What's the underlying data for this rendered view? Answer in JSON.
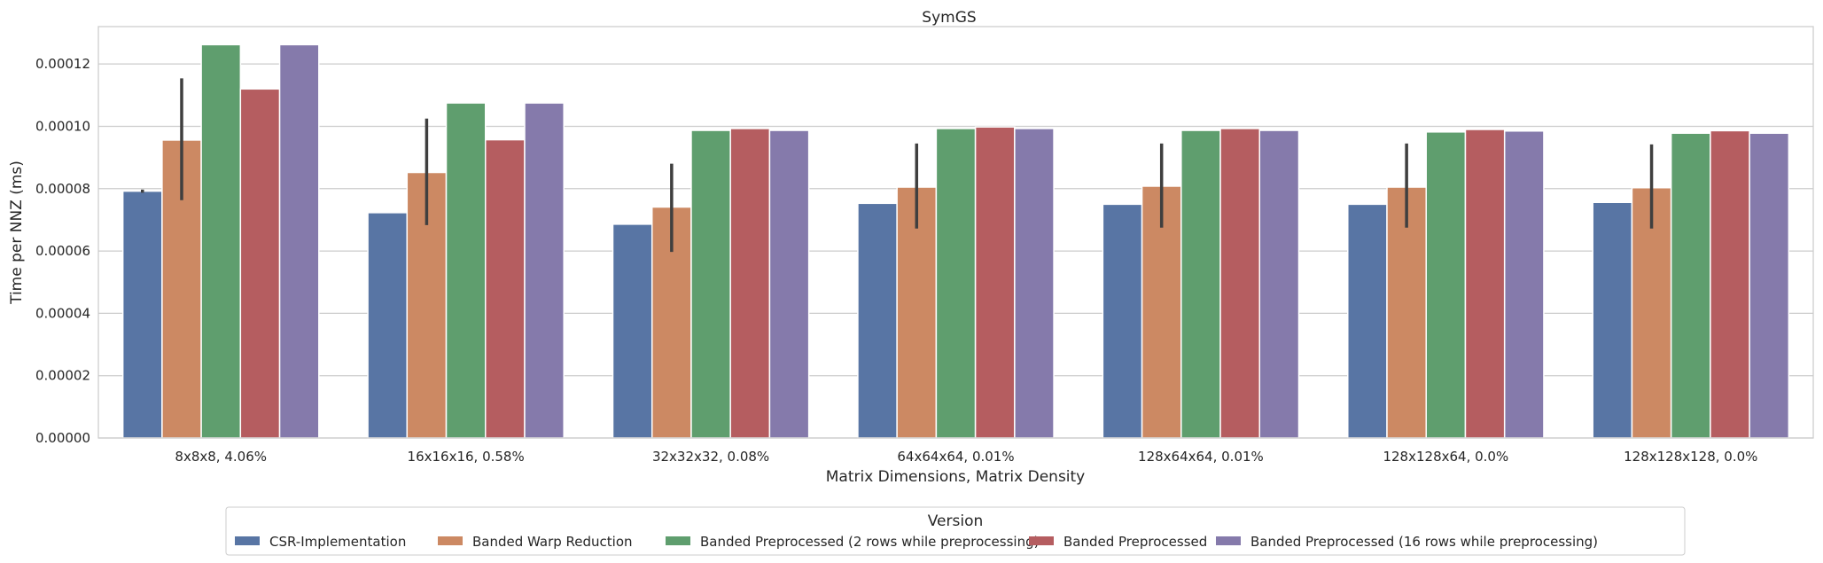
{
  "chart_data": {
    "type": "bar",
    "title": "SymGS",
    "xlabel": "Matrix Dimensions, Matrix Density",
    "ylabel": "Time per NNZ (ms)",
    "ylim": [
      0,
      0.000132
    ],
    "yticks": [
      0,
      2e-05,
      4e-05,
      6e-05,
      8e-05,
      0.0001,
      0.00012
    ],
    "ytick_labels": [
      "0.00000",
      "0.00002",
      "0.00004",
      "0.00006",
      "0.00008",
      "0.00010",
      "0.00012"
    ],
    "grid": "horizontal",
    "legend_position": "bottom-center",
    "legend_title": "Version",
    "categories": [
      "8x8x8, 4.06%",
      "16x16x16, 0.58%",
      "32x32x32, 0.08%",
      "64x64x64, 0.01%",
      "128x64x64, 0.01%",
      "128x128x64, 0.0%",
      "128x128x128, 0.0%"
    ],
    "series": [
      {
        "name": "CSR-Implementation",
        "color": "#5875a4",
        "values": [
          7.92e-05,
          7.23e-05,
          6.86e-05,
          7.53e-05,
          7.5e-05,
          7.5e-05,
          7.56e-05
        ],
        "error": [
          [
            7.87e-05,
            7.97e-05
          ],
          null,
          null,
          null,
          null,
          null,
          null
        ]
      },
      {
        "name": "Banded Warp Reduction",
        "color": "#cc8963",
        "values": [
          9.56e-05,
          8.52e-05,
          7.41e-05,
          8.05e-05,
          8.08e-05,
          8.05e-05,
          8.03e-05
        ],
        "error": [
          [
            7.63e-05,
            0.0001154
          ],
          [
            6.83e-05,
            0.0001025
          ],
          [
            5.97e-05,
            8.8e-05
          ],
          [
            6.72e-05,
            9.45e-05
          ],
          [
            6.75e-05,
            9.45e-05
          ],
          [
            6.75e-05,
            9.45e-05
          ],
          [
            6.72e-05,
            9.42e-05
          ]
        ]
      },
      {
        "name": "Banded Preprocessed (2 rows while preprocessing)",
        "color": "#5f9e6e",
        "values": [
          0.0001262,
          0.0001075,
          9.87e-05,
          9.93e-05,
          9.87e-05,
          9.82e-05,
          9.78e-05
        ]
      },
      {
        "name": "Banded Preprocessed",
        "color": "#b55d60",
        "values": [
          0.000112,
          9.57e-05,
          9.93e-05,
          9.98e-05,
          9.93e-05,
          9.9e-05,
          9.86e-05
        ]
      },
      {
        "name": "Banded Preprocessed (16 rows while preprocessing)",
        "color": "#857aab",
        "values": [
          0.0001262,
          0.0001075,
          9.87e-05,
          9.93e-05,
          9.87e-05,
          9.85e-05,
          9.78e-05
        ]
      }
    ]
  }
}
